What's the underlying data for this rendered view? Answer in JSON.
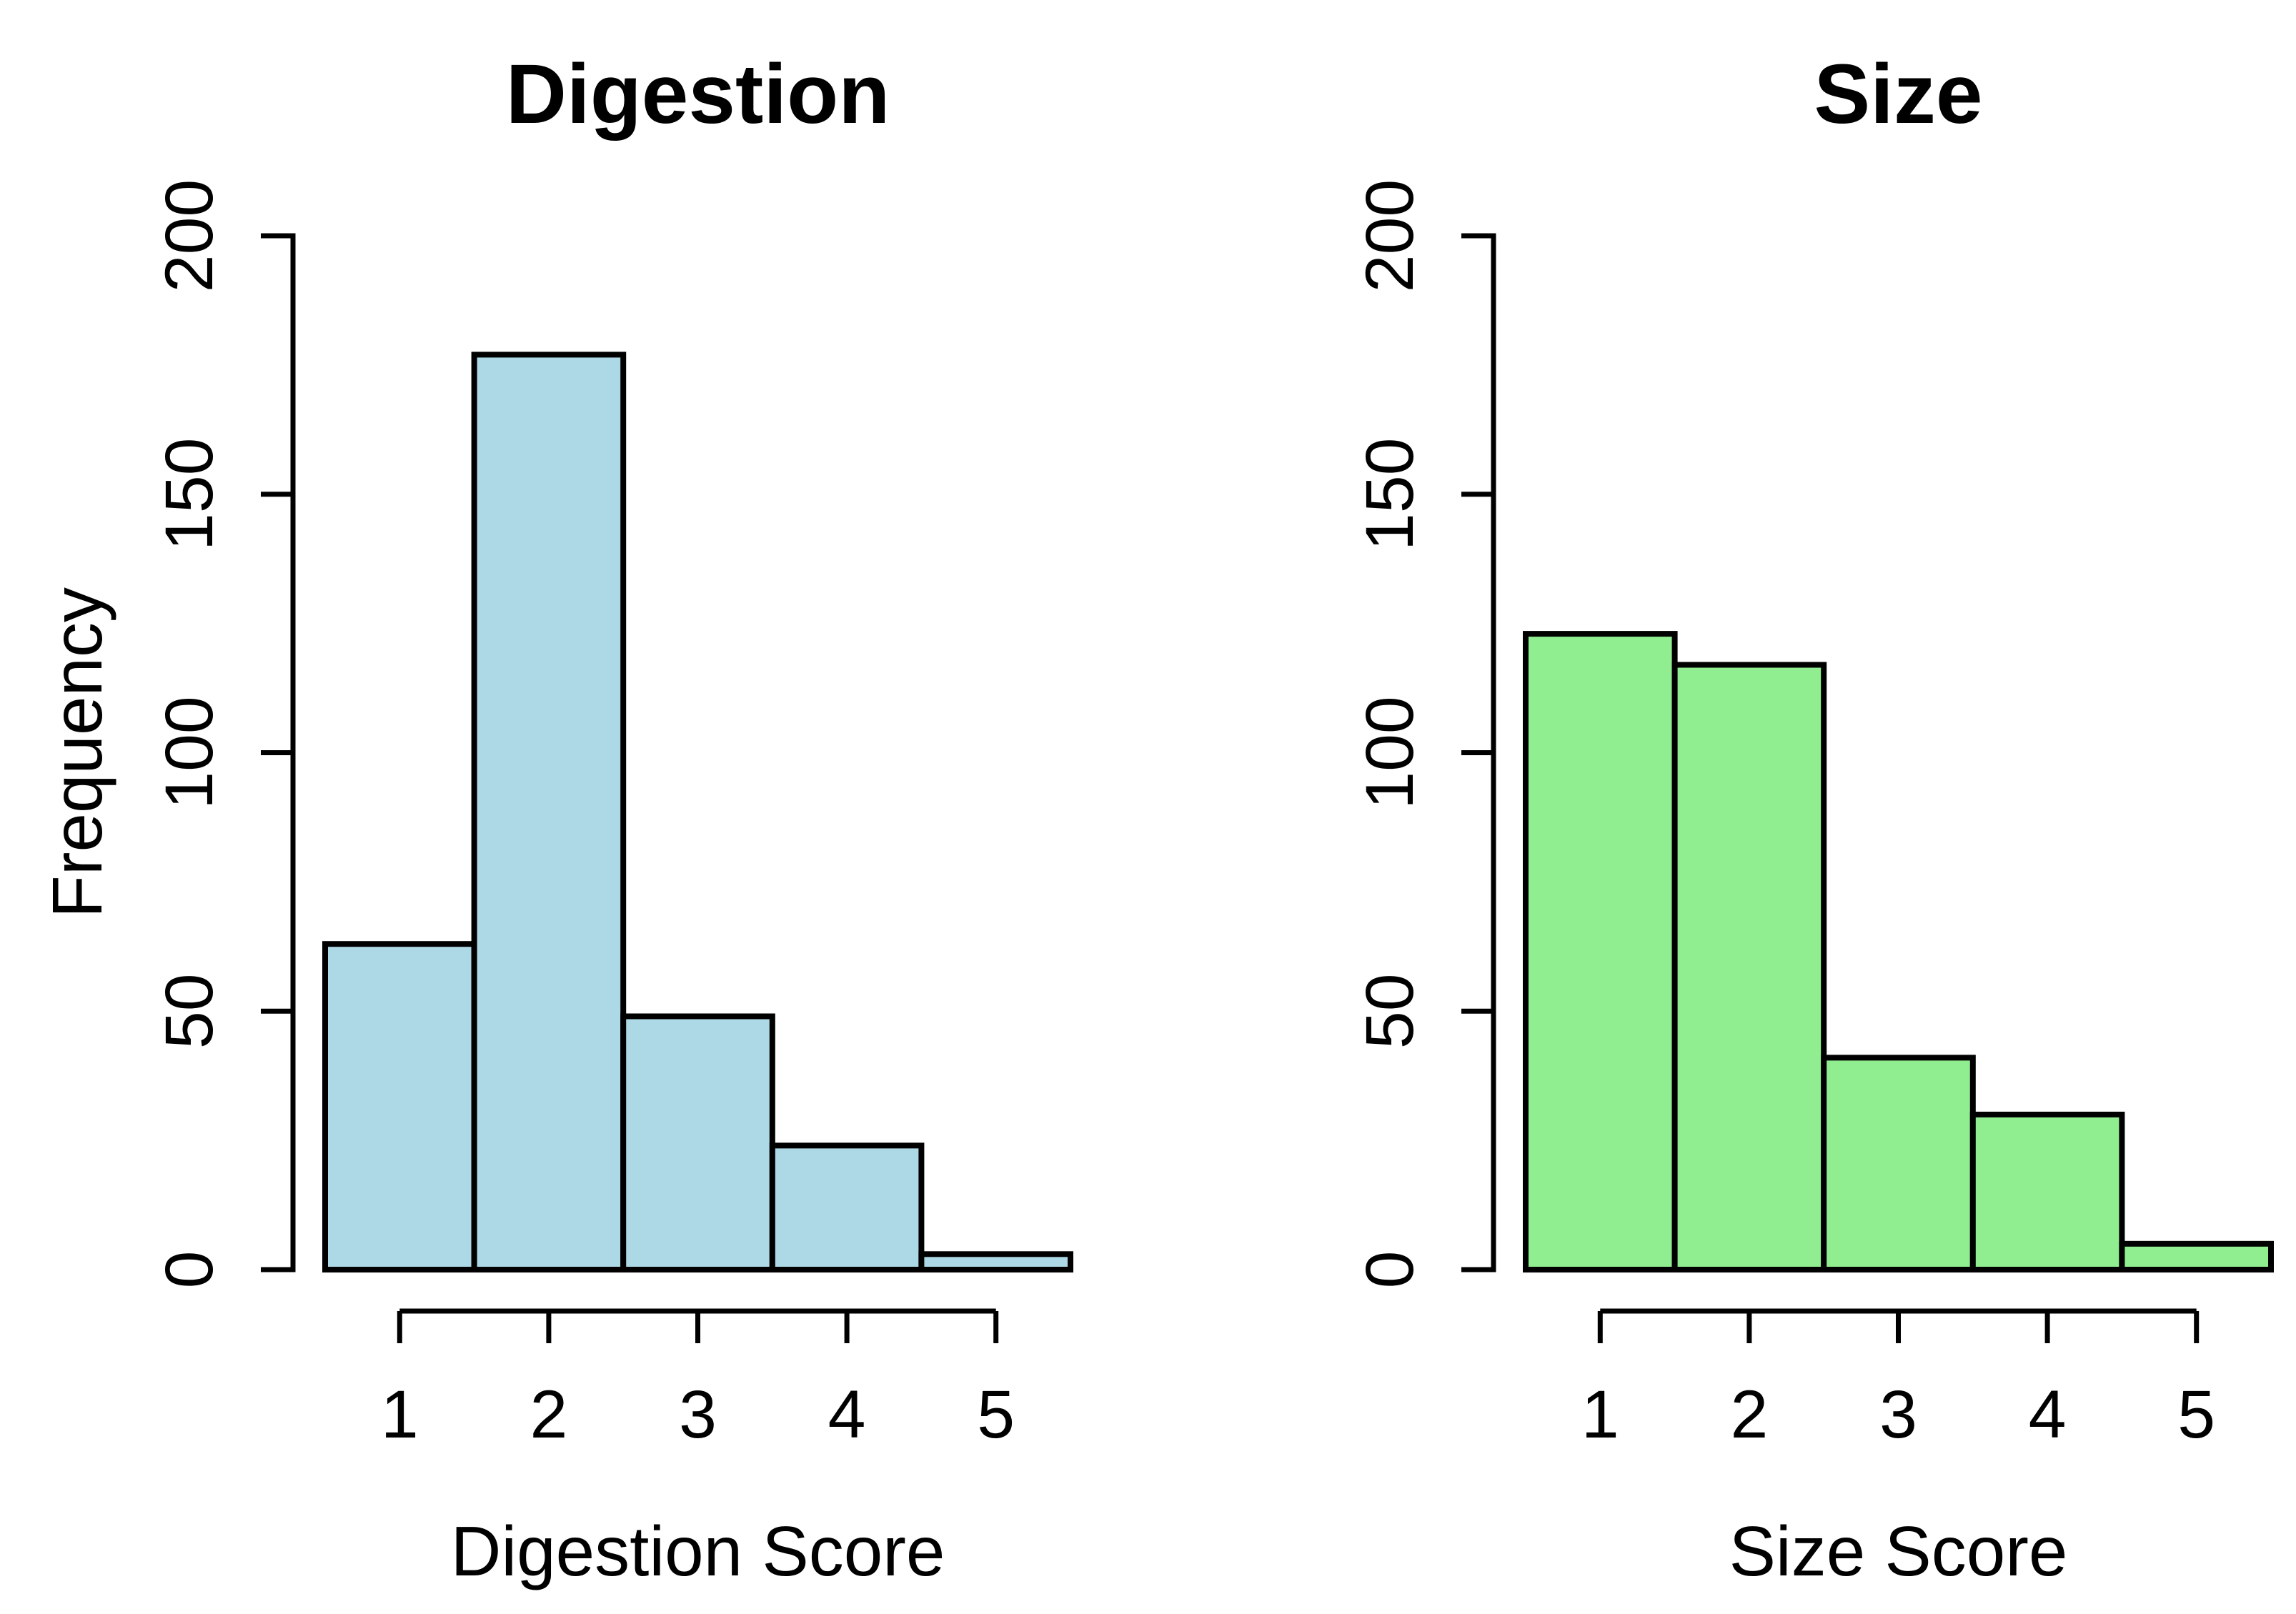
{
  "figure": {
    "background": "#ffffff",
    "text_color": "#000000",
    "axis_color": "#000000"
  },
  "chart_data": [
    {
      "type": "bar",
      "chart_kind": "histogram",
      "title": "Digestion",
      "xlabel": "Digestion Score",
      "ylabel": "Frequency",
      "categories": [
        "1",
        "2",
        "3",
        "4",
        "5"
      ],
      "values": [
        63,
        177,
        49,
        24,
        3
      ],
      "bar_fill": "#ADD8E6",
      "bar_stroke": "#000000",
      "ylim": [
        0,
        200
      ],
      "yticks": [
        0,
        50,
        100,
        150,
        200
      ],
      "grid": "off",
      "legend": "none"
    },
    {
      "type": "bar",
      "chart_kind": "histogram",
      "title": "Size",
      "xlabel": "Size Score",
      "ylabel": "",
      "categories": [
        "1",
        "2",
        "3",
        "4",
        "5"
      ],
      "values": [
        123,
        117,
        41,
        30,
        5
      ],
      "bar_fill": "#90EE90",
      "bar_stroke": "#000000",
      "ylim": [
        0,
        200
      ],
      "yticks": [
        0,
        50,
        100,
        150,
        200
      ],
      "grid": "off",
      "legend": "none"
    }
  ]
}
